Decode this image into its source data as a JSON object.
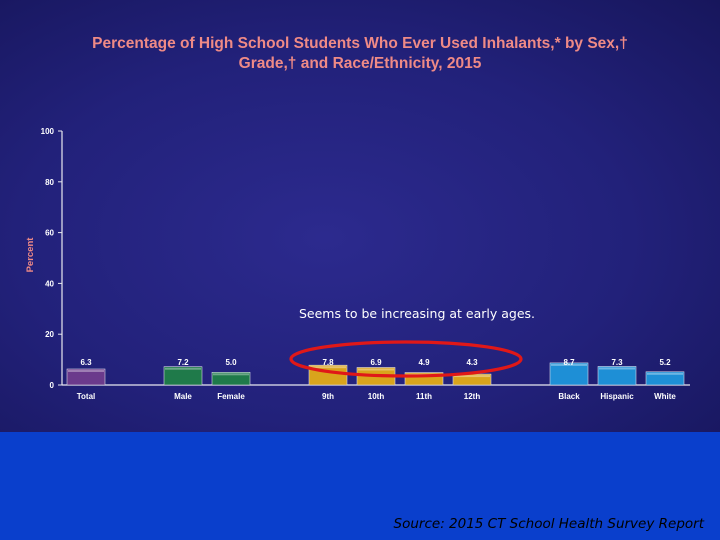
{
  "chart_data": {
    "type": "bar",
    "title_line1": "Percentage of High School Students Who Ever Used Inhalants,* by Sex,†",
    "title_line2": "Grade,† and Race/Ethnicity, 2015",
    "xlabel": "",
    "ylabel": "Percent",
    "ylim": [
      0,
      100
    ],
    "yticks": [
      "0",
      "20",
      "40",
      "60",
      "80",
      "100"
    ],
    "grid": false,
    "categories": [
      "Total",
      "Male",
      "Female",
      "9th",
      "10th",
      "11th",
      "12th",
      "Black",
      "Hispanic",
      "White"
    ],
    "values": [
      6.3,
      7.2,
      5.0,
      7.8,
      6.9,
      4.9,
      4.3,
      8.7,
      7.3,
      5.2
    ],
    "value_labels": [
      "6.3",
      "7.2",
      "5.0",
      "7.8",
      "6.9",
      "4.9",
      "4.3",
      "8.7",
      "7.3",
      "5.2"
    ],
    "groups": [
      {
        "members": [
          0
        ],
        "color": "#6b3a8c"
      },
      {
        "members": [
          1,
          2
        ],
        "color": "#1f7a4a"
      },
      {
        "members": [
          3,
          4,
          5,
          6
        ],
        "color": "#d9a41c"
      },
      {
        "members": [
          7,
          8,
          9
        ],
        "color": "#1e8fd6"
      }
    ],
    "highlight": {
      "members": [
        3,
        4,
        5,
        6
      ],
      "shape": "ellipse",
      "color": "#e01818"
    },
    "annotation": "Seems to be increasing at early ages."
  },
  "footer": {
    "source": "Source: 2015 CT School Health Survey Report"
  }
}
